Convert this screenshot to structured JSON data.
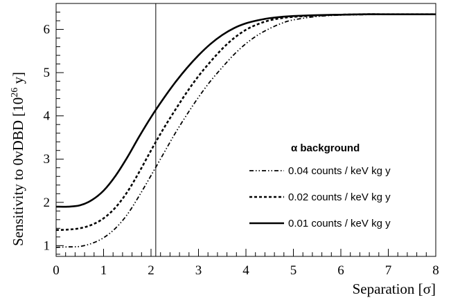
{
  "chart_data": {
    "type": "line",
    "xlabel": "Separation [σ]",
    "ylabel_main": "Sensitivity to 0vDBD [10",
    "ylabel_exp": "26",
    "ylabel_end": " y]",
    "xlim": [
      0,
      8
    ],
    "ylim": [
      0.75,
      6.6
    ],
    "x_ticks": [
      "0",
      "1",
      "2",
      "3",
      "4",
      "5",
      "6",
      "7",
      "8"
    ],
    "y_ticks": [
      "1",
      "2",
      "3",
      "4",
      "5",
      "6"
    ],
    "vertical_line_x": 2.1,
    "legend_title": "α background",
    "series": [
      {
        "name": "0.04 counts / keV kg y",
        "style": "dash-dot",
        "x": [
          0,
          0.25,
          0.5,
          0.75,
          1.0,
          1.25,
          1.5,
          1.75,
          2.0,
          2.25,
          2.5,
          2.75,
          3.0,
          3.25,
          3.5,
          3.75,
          4.0,
          4.25,
          4.5,
          4.75,
          5.0,
          5.5,
          6.0,
          6.5,
          7.0,
          7.5,
          8.0
        ],
        "y": [
          0.96,
          0.97,
          0.98,
          1.05,
          1.18,
          1.4,
          1.72,
          2.15,
          2.62,
          3.1,
          3.58,
          4.02,
          4.43,
          4.8,
          5.12,
          5.42,
          5.67,
          5.87,
          6.02,
          6.14,
          6.22,
          6.3,
          6.33,
          6.34,
          6.35,
          6.35,
          6.35
        ]
      },
      {
        "name": "0.02 counts / keV kg y",
        "style": "dashed",
        "x": [
          0,
          0.25,
          0.5,
          0.75,
          1.0,
          1.25,
          1.5,
          1.75,
          2.0,
          2.25,
          2.5,
          2.75,
          3.0,
          3.25,
          3.5,
          3.75,
          4.0,
          4.25,
          4.5,
          4.75,
          5.0,
          5.5,
          6.0,
          6.5,
          7.0,
          7.5,
          8.0
        ],
        "y": [
          1.36,
          1.37,
          1.4,
          1.48,
          1.63,
          1.88,
          2.24,
          2.7,
          3.2,
          3.68,
          4.12,
          4.54,
          4.92,
          5.25,
          5.55,
          5.8,
          5.99,
          6.12,
          6.21,
          6.26,
          6.29,
          6.32,
          6.34,
          6.35,
          6.35,
          6.35,
          6.35
        ]
      },
      {
        "name": "0.01 counts / keV kg y",
        "style": "solid",
        "x": [
          0,
          0.25,
          0.5,
          0.75,
          1.0,
          1.25,
          1.5,
          1.75,
          2.0,
          2.25,
          2.5,
          2.75,
          3.0,
          3.25,
          3.5,
          3.75,
          4.0,
          4.25,
          4.5,
          4.75,
          5.0,
          5.5,
          6.0,
          6.5,
          7.0,
          7.5,
          8.0
        ],
        "y": [
          1.9,
          1.9,
          1.93,
          2.05,
          2.27,
          2.61,
          3.04,
          3.52,
          3.97,
          4.38,
          4.76,
          5.1,
          5.4,
          5.66,
          5.87,
          6.03,
          6.14,
          6.21,
          6.26,
          6.29,
          6.31,
          6.33,
          6.34,
          6.35,
          6.35,
          6.35,
          6.35
        ]
      }
    ]
  }
}
